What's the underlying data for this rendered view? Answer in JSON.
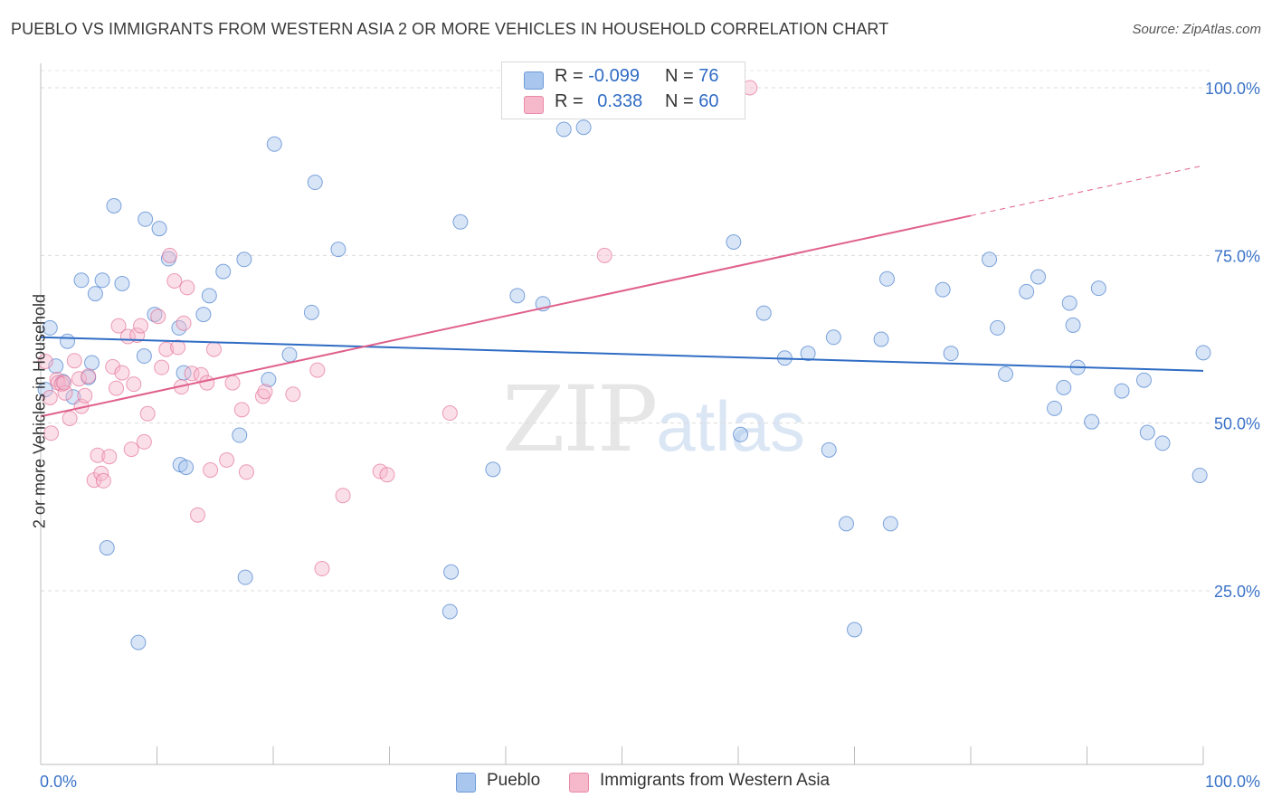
{
  "title": "PUEBLO VS IMMIGRANTS FROM WESTERN ASIA 2 OR MORE VEHICLES IN HOUSEHOLD CORRELATION CHART",
  "source": "Source: ZipAtlas.com",
  "legend_top": {
    "rows": [
      {
        "r_label": "R =",
        "r_value": "-0.099",
        "n_label": "N =",
        "n_value": "76",
        "color": "#a9c6ee",
        "border": "#6f9bd8"
      },
      {
        "r_label": "R =",
        "r_value": "0.338",
        "n_label": "N =",
        "n_value": "60",
        "color": "#f6b8cb",
        "border": "#e98aa8"
      }
    ]
  },
  "legend_bottom": {
    "pueblo": "Pueblo",
    "western_asia": "Immigrants from Western Asia"
  },
  "watermark": {
    "zip": "ZIP",
    "atlas": "atlas"
  },
  "chart_data": {
    "type": "scatter",
    "xlabel": "",
    "ylabel": "2 or more Vehicles in Household",
    "xlim": [
      0,
      100
    ],
    "ylim": [
      0,
      104
    ],
    "x_tick_labels": [
      "0.0%",
      "100.0%"
    ],
    "y_ticks": [
      25,
      50,
      75,
      100
    ],
    "y_tick_labels": [
      "25.0%",
      "50.0%",
      "75.0%",
      "100.0%"
    ],
    "grid": true,
    "colors": {
      "blue": "#2f6cc4",
      "pink": "#e0608c",
      "blue_fill": "#a9c6ee",
      "pink_fill": "#f6b8cb",
      "tick_label": "#3a72c8"
    },
    "series": [
      {
        "name": "Pueblo",
        "trend": {
          "x": [
            0,
            100
          ],
          "y": [
            62.8,
            57.8
          ],
          "dashed_from": null
        },
        "points": [
          [
            0.4,
            55.0
          ],
          [
            0.8,
            64.2
          ],
          [
            1.3,
            58.5
          ],
          [
            1.9,
            56.2
          ],
          [
            2.3,
            62.2
          ],
          [
            2.8,
            53.9
          ],
          [
            3.5,
            71.3
          ],
          [
            4.1,
            56.8
          ],
          [
            4.4,
            59.0
          ],
          [
            4.7,
            69.3
          ],
          [
            5.3,
            71.3
          ],
          [
            5.7,
            31.4
          ],
          [
            6.3,
            82.4
          ],
          [
            7.0,
            70.8
          ],
          [
            8.4,
            17.3
          ],
          [
            8.9,
            60.0
          ],
          [
            9.0,
            80.4
          ],
          [
            9.8,
            66.2
          ],
          [
            10.2,
            79.0
          ],
          [
            11.0,
            74.5
          ],
          [
            11.9,
            64.2
          ],
          [
            12.0,
            43.8
          ],
          [
            12.3,
            57.5
          ],
          [
            12.5,
            43.4
          ],
          [
            14.0,
            66.2
          ],
          [
            14.5,
            69.0
          ],
          [
            15.7,
            72.6
          ],
          [
            17.1,
            48.2
          ],
          [
            17.5,
            74.4
          ],
          [
            17.6,
            27.0
          ],
          [
            19.6,
            56.5
          ],
          [
            20.1,
            91.6
          ],
          [
            21.4,
            60.2
          ],
          [
            23.3,
            66.5
          ],
          [
            23.6,
            85.9
          ],
          [
            25.6,
            75.9
          ],
          [
            35.2,
            21.9
          ],
          [
            35.3,
            27.8
          ],
          [
            36.1,
            80.0
          ],
          [
            38.9,
            43.1
          ],
          [
            41.0,
            69.0
          ],
          [
            43.2,
            67.8
          ],
          [
            45.0,
            93.8
          ],
          [
            46.7,
            94.1
          ],
          [
            59.6,
            77.0
          ],
          [
            60.2,
            48.3
          ],
          [
            62.2,
            66.4
          ],
          [
            64.0,
            59.7
          ],
          [
            66.0,
            60.4
          ],
          [
            67.8,
            46.0
          ],
          [
            68.2,
            62.8
          ],
          [
            69.3,
            35.0
          ],
          [
            70.0,
            19.2
          ],
          [
            72.3,
            62.5
          ],
          [
            72.8,
            71.5
          ],
          [
            73.1,
            35.0
          ],
          [
            77.6,
            69.9
          ],
          [
            78.3,
            60.4
          ],
          [
            81.6,
            74.4
          ],
          [
            82.3,
            64.2
          ],
          [
            83.0,
            57.3
          ],
          [
            84.8,
            69.6
          ],
          [
            85.8,
            71.8
          ],
          [
            87.2,
            52.2
          ],
          [
            88.0,
            55.3
          ],
          [
            88.5,
            67.9
          ],
          [
            88.8,
            64.6
          ],
          [
            89.2,
            58.3
          ],
          [
            90.4,
            50.2
          ],
          [
            91.0,
            70.1
          ],
          [
            93.0,
            54.8
          ],
          [
            94.9,
            56.4
          ],
          [
            95.2,
            48.6
          ],
          [
            96.5,
            47.0
          ],
          [
            99.7,
            42.2
          ],
          [
            100.0,
            60.5
          ]
        ]
      },
      {
        "name": "Immigrants from Western Asia",
        "trend": {
          "x": [
            0,
            100
          ],
          "y": [
            51.0,
            88.4
          ],
          "dashed_from": 80
        },
        "points": [
          [
            0.4,
            59.2
          ],
          [
            0.9,
            48.5
          ],
          [
            1.4,
            56.5
          ],
          [
            1.5,
            56.0
          ],
          [
            1.8,
            55.8
          ],
          [
            2.1,
            54.5
          ],
          [
            2.5,
            50.7
          ],
          [
            2.9,
            59.3
          ],
          [
            3.3,
            56.6
          ],
          [
            3.5,
            52.5
          ],
          [
            3.8,
            54.1
          ],
          [
            4.1,
            57.0
          ],
          [
            4.6,
            41.5
          ],
          [
            4.9,
            45.2
          ],
          [
            5.2,
            42.5
          ],
          [
            5.4,
            41.4
          ],
          [
            5.9,
            45.0
          ],
          [
            6.2,
            58.4
          ],
          [
            6.5,
            55.2
          ],
          [
            6.7,
            64.5
          ],
          [
            7.0,
            57.5
          ],
          [
            7.5,
            62.9
          ],
          [
            7.8,
            46.1
          ],
          [
            8.0,
            55.8
          ],
          [
            8.3,
            63.1
          ],
          [
            8.6,
            64.5
          ],
          [
            8.9,
            47.2
          ],
          [
            9.2,
            51.4
          ],
          [
            10.1,
            65.9
          ],
          [
            10.4,
            58.3
          ],
          [
            10.8,
            61.0
          ],
          [
            11.1,
            75.0
          ],
          [
            11.5,
            71.2
          ],
          [
            11.8,
            61.3
          ],
          [
            12.1,
            55.4
          ],
          [
            12.3,
            64.9
          ],
          [
            12.6,
            70.2
          ],
          [
            13.0,
            57.4
          ],
          [
            13.5,
            36.3
          ],
          [
            13.8,
            57.2
          ],
          [
            14.3,
            56.0
          ],
          [
            14.6,
            43.0
          ],
          [
            14.9,
            61.0
          ],
          [
            16.0,
            44.5
          ],
          [
            16.5,
            56.0
          ],
          [
            17.3,
            52.0
          ],
          [
            17.7,
            42.7
          ],
          [
            19.1,
            54.0
          ],
          [
            19.3,
            54.7
          ],
          [
            21.7,
            54.3
          ],
          [
            23.8,
            57.9
          ],
          [
            24.2,
            28.3
          ],
          [
            26.0,
            39.2
          ],
          [
            29.2,
            42.8
          ],
          [
            29.8,
            42.3
          ],
          [
            35.2,
            51.5
          ],
          [
            48.5,
            75.0
          ],
          [
            61.0,
            100.0
          ],
          [
            0.8,
            53.8
          ],
          [
            2.0,
            56.0
          ]
        ]
      }
    ]
  }
}
